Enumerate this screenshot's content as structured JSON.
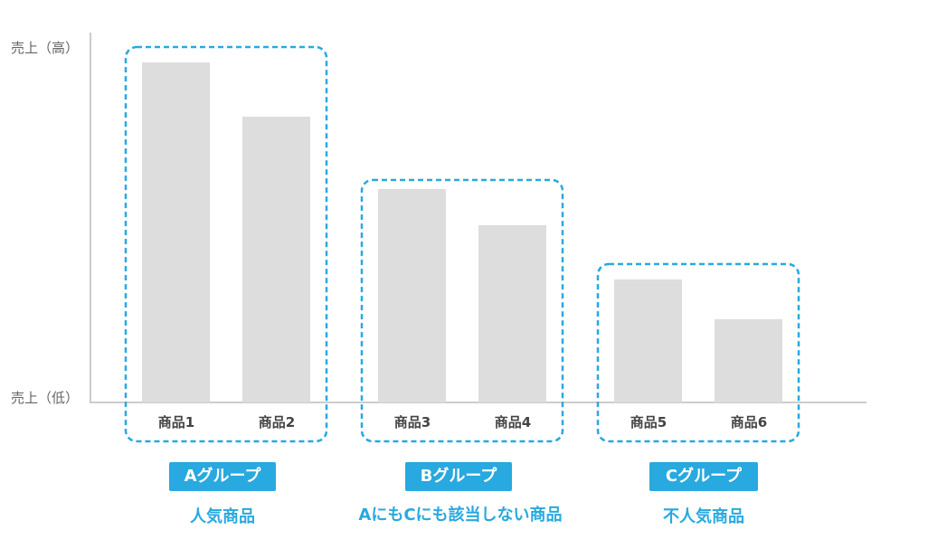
{
  "chart_data": {
    "type": "bar",
    "y_axis": {
      "top_label": "売上（高）",
      "bottom_label": "売上（低）"
    },
    "categories": [
      "商品1",
      "商品2",
      "商品3",
      "商品4",
      "商品5",
      "商品6"
    ],
    "values": [
      94,
      79,
      59,
      49,
      34,
      23
    ],
    "ylim": [
      0,
      100
    ],
    "grid": false,
    "groups": [
      {
        "badge": "Aグループ",
        "description": "人気商品",
        "items": [
          0,
          1
        ]
      },
      {
        "badge": "Bグループ",
        "description": "AにもCにも該当しない商品",
        "items": [
          2,
          3
        ]
      },
      {
        "badge": "Cグループ",
        "description": "不人気商品",
        "items": [
          4,
          5
        ]
      }
    ]
  },
  "colors": {
    "bar": "#dddddd",
    "axis": "#cccccc",
    "accent": "#28a9df"
  }
}
